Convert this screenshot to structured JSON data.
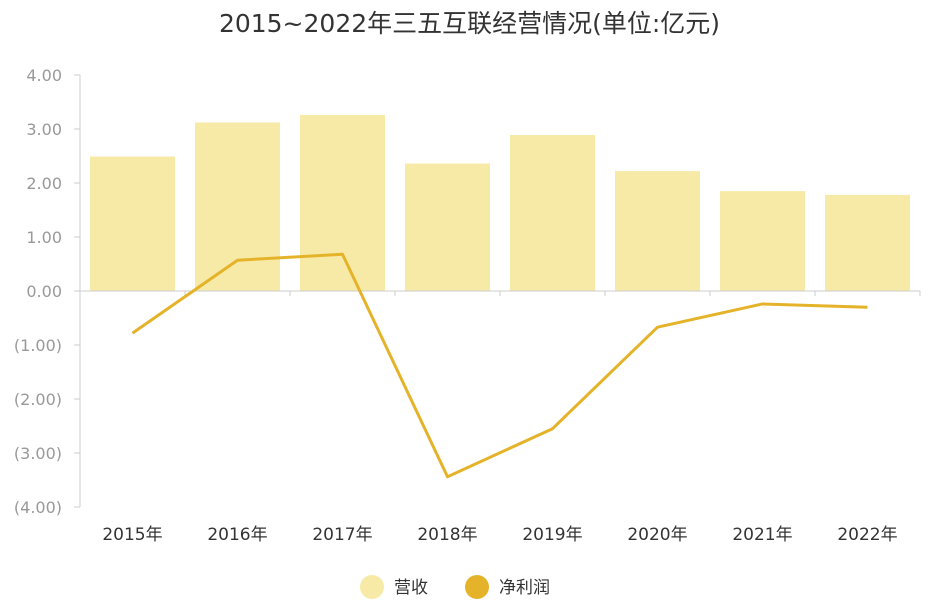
{
  "chart_data": {
    "type": "bar",
    "title": "2015~2022年三五互联经营情况(单位:亿元)",
    "categories": [
      "2015年",
      "2016年",
      "2017年",
      "2018年",
      "2019年",
      "2020年",
      "2021年",
      "2022年"
    ],
    "series": [
      {
        "name": "营收",
        "type": "bar",
        "color": "#f7eaa6",
        "values": [
          2.49,
          3.12,
          3.26,
          2.36,
          2.89,
          2.22,
          1.85,
          1.78
        ]
      },
      {
        "name": "净利润",
        "type": "line",
        "color": "#e5b32a",
        "values": [
          -0.78,
          0.57,
          0.68,
          -3.44,
          -2.55,
          -0.67,
          -0.24,
          -0.3
        ]
      }
    ],
    "ylim": [
      -4,
      4
    ],
    "yticks": [
      4,
      3,
      2,
      1,
      0,
      -1,
      -2,
      -3,
      -4
    ],
    "ytick_labels": [
      "4.00",
      "3.00",
      "2.00",
      "1.00",
      "0.00",
      "(1.00)",
      "(2.00)",
      "(3.00)",
      "(4.00)"
    ],
    "legend_position": "bottom-center"
  }
}
